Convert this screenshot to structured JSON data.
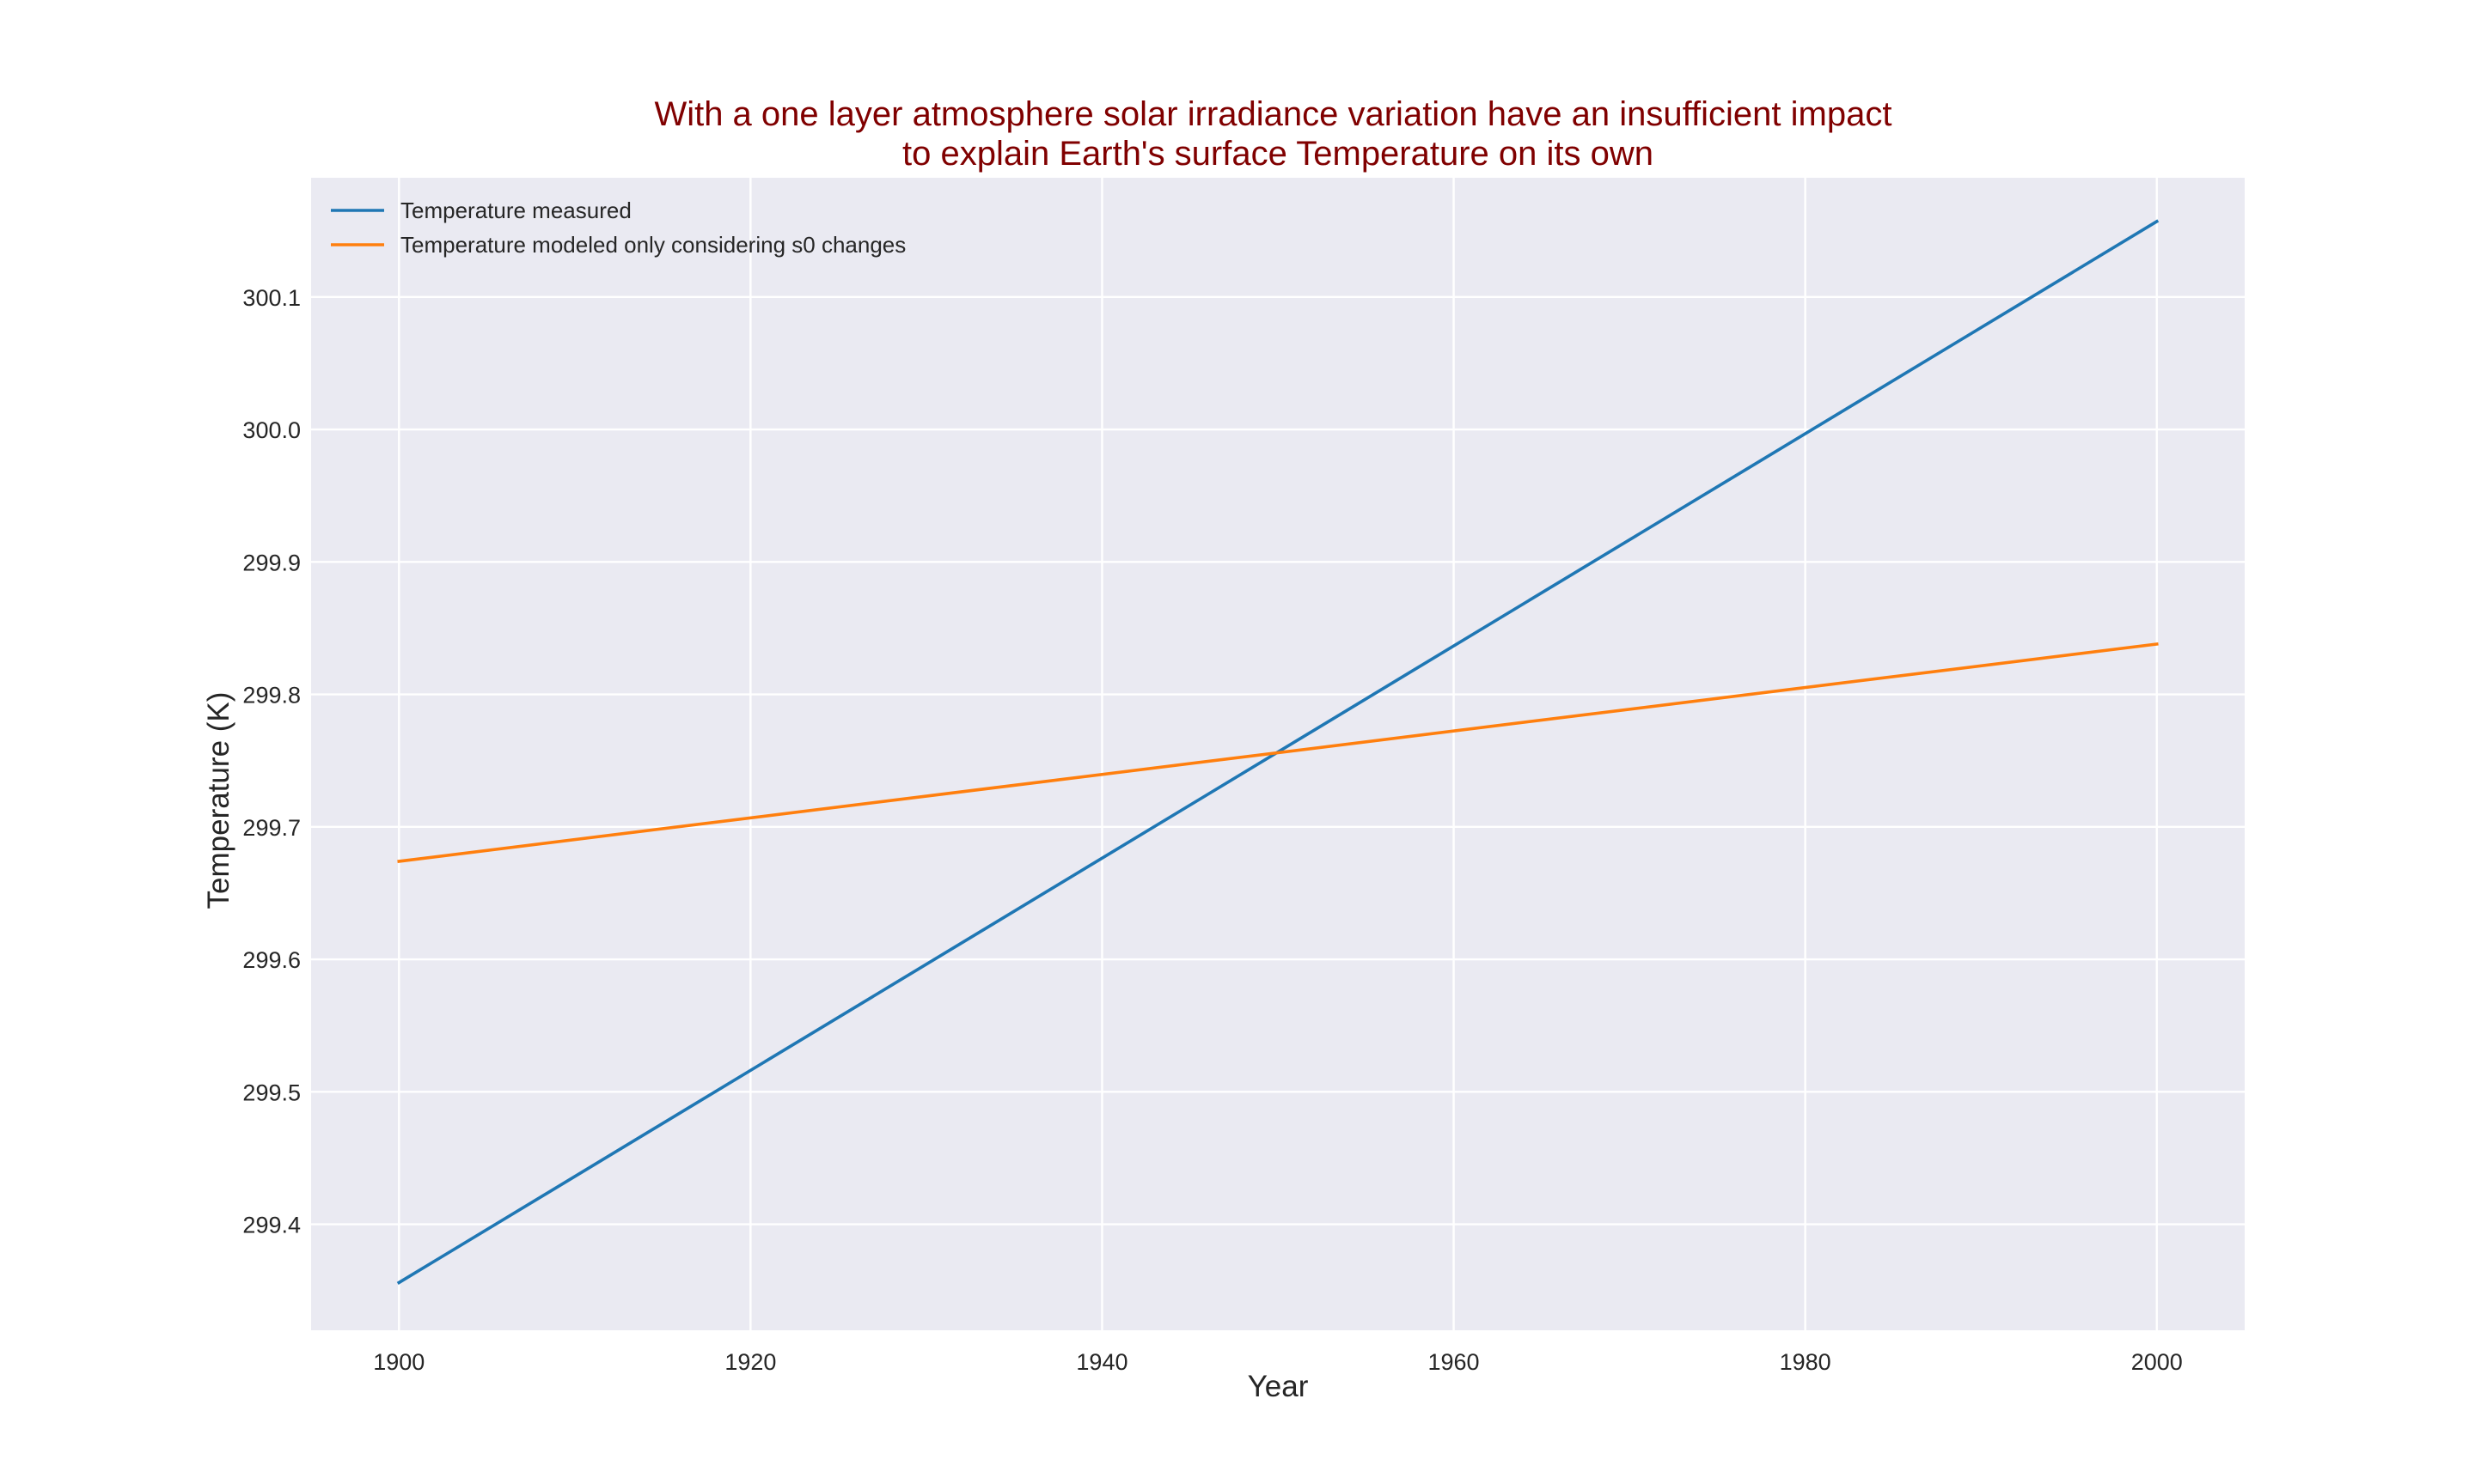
{
  "chart_data": {
    "type": "line",
    "title": "With a one layer atmosphere solar irradiance variation have an insufficient impact\nto explain Earth's surface Temperature on its own",
    "xlabel": "Year",
    "ylabel": "Temperature (K)",
    "xlim": [
      1895,
      2005
    ],
    "ylim": [
      299.32,
      300.19
    ],
    "xticks": [
      1900,
      1920,
      1940,
      1960,
      1980,
      2000
    ],
    "yticks": [
      299.4,
      299.5,
      299.6,
      299.7,
      299.8,
      299.9,
      300.0,
      300.1
    ],
    "xtick_labels": [
      "1900",
      "1920",
      "1940",
      "1960",
      "1980",
      "2000"
    ],
    "ytick_labels": [
      "299.4",
      "299.5",
      "299.6",
      "299.7",
      "299.8",
      "299.9",
      "300.0",
      "300.1"
    ],
    "grid": true,
    "legend_position": "top-left",
    "series": [
      {
        "name": "Temperature measured",
        "color": "#1f77b4",
        "x": [
          1900,
          2000
        ],
        "y": [
          299.356,
          300.157
        ]
      },
      {
        "name": "Temperature modeled only considering s0 changes",
        "color": "#ff7f0e",
        "x": [
          1900,
          2000
        ],
        "y": [
          299.674,
          299.838
        ]
      }
    ]
  }
}
